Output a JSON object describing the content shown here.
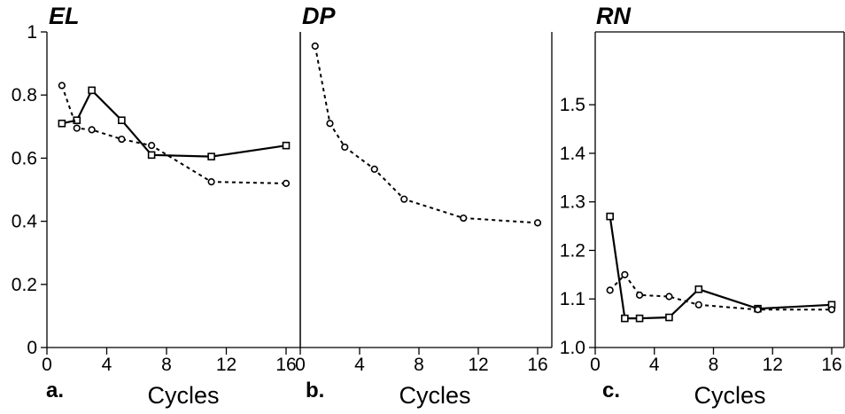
{
  "chart_data": [
    {
      "type": "line",
      "title": "EL",
      "panel_label": "a.",
      "xlabel": "Cycles",
      "ylabel": "",
      "xlim": [
        0,
        17
      ],
      "ylim": [
        0,
        1
      ],
      "xticks": [
        0,
        4,
        8,
        12,
        16
      ],
      "xtick_labels": [
        "0",
        "4",
        "8",
        "12",
        "16"
      ],
      "yticks": [
        0,
        0.2,
        0.4,
        0.6,
        0.8,
        1
      ],
      "ytick_labels": [
        "0",
        "0.2",
        "0.4",
        "0.6",
        "0.8",
        "1"
      ],
      "series": [
        {
          "style": "solid",
          "marker": "square",
          "x": [
            1,
            2,
            3,
            5,
            7,
            11,
            16
          ],
          "y": [
            0.71,
            0.72,
            0.815,
            0.72,
            0.61,
            0.605,
            0.64
          ]
        },
        {
          "style": "dotted",
          "marker": "circle",
          "x": [
            1,
            2,
            3,
            5,
            7,
            11,
            16
          ],
          "y": [
            0.83,
            0.695,
            0.69,
            0.66,
            0.64,
            0.525,
            0.52
          ]
        }
      ]
    },
    {
      "type": "line",
      "title": "DP",
      "panel_label": "b.",
      "xlabel": "Cycles",
      "ylabel": "",
      "xlim": [
        0,
        17
      ],
      "ylim": [
        0,
        1
      ],
      "xticks": [
        0,
        4,
        8,
        12,
        16
      ],
      "xtick_labels": [
        "0",
        "4",
        "8",
        "12",
        "16"
      ],
      "series": [
        {
          "style": "dotted",
          "marker": "circle",
          "x": [
            1,
            2,
            3,
            5,
            7,
            11,
            16
          ],
          "y": [
            0.955,
            0.71,
            0.635,
            0.565,
            0.47,
            0.41,
            0.395
          ]
        }
      ]
    },
    {
      "type": "line",
      "title": "RN",
      "panel_label": "c.",
      "xlabel": "Cycles",
      "ylabel": "",
      "xlim": [
        0,
        17
      ],
      "ylim": [
        1.0,
        1.65
      ],
      "xticks": [
        0,
        4,
        8,
        12,
        16
      ],
      "xtick_labels": [
        "0",
        "4",
        "8",
        "12",
        "16"
      ],
      "yticks": [
        1.0,
        1.1,
        1.2,
        1.3,
        1.4,
        1.5
      ],
      "ytick_labels": [
        "1.0",
        "1.1",
        "1.2",
        "1.3",
        "1.4",
        "1.5"
      ],
      "series": [
        {
          "style": "solid",
          "marker": "square",
          "x": [
            1,
            2,
            3,
            5,
            7,
            11,
            16
          ],
          "y": [
            1.27,
            1.06,
            1.06,
            1.062,
            1.12,
            1.08,
            1.088
          ]
        },
        {
          "style": "dotted",
          "marker": "circle",
          "x": [
            1,
            2,
            3,
            5,
            7,
            11,
            16
          ],
          "y": [
            1.118,
            1.15,
            1.108,
            1.105,
            1.088,
            1.078,
            1.078
          ]
        }
      ]
    }
  ]
}
